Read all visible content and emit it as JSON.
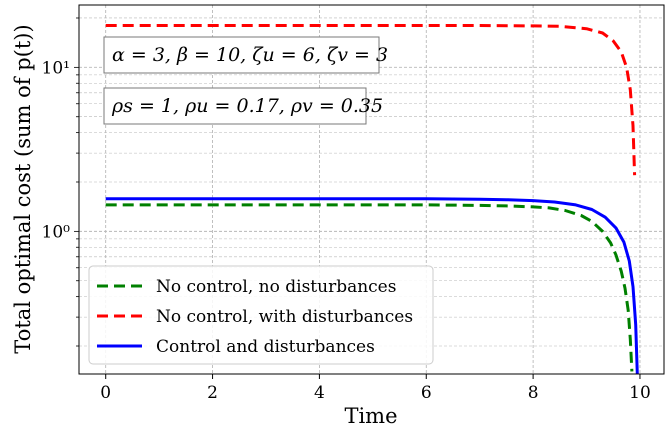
{
  "chart_data": {
    "type": "line",
    "xlabel": "Time",
    "ylabel": "Total optimal cost (sum of p(t))",
    "xlim": [
      -0.5,
      10.45
    ],
    "ylim": [
      0.135,
      24
    ],
    "yscale": "log",
    "grid": true,
    "x_ticks": [
      0,
      2,
      4,
      6,
      8,
      10
    ],
    "y_ticks": [
      {
        "value": 1,
        "label": "10⁰"
      },
      {
        "value": 10,
        "label": "10¹"
      }
    ],
    "annotations": [
      "α = 3, β = 10, ζu = 6, ζv = 3",
      "ρs = 1, ρu = 0.17, ρv = 0.35"
    ],
    "legend_position": "lower-left",
    "series": [
      {
        "name": "No control, no disturbances",
        "color": "#008000",
        "style": "dashed",
        "x": [
          0,
          1,
          2,
          3,
          4,
          5,
          6,
          7,
          7.5,
          8,
          8.3,
          8.6,
          8.9,
          9.1,
          9.3,
          9.45,
          9.55,
          9.65,
          9.72,
          9.78,
          9.82,
          9.85
        ],
        "y": [
          1.45,
          1.45,
          1.45,
          1.45,
          1.45,
          1.45,
          1.45,
          1.44,
          1.43,
          1.41,
          1.39,
          1.34,
          1.25,
          1.15,
          1.0,
          0.85,
          0.72,
          0.57,
          0.45,
          0.33,
          0.22,
          0.14
        ]
      },
      {
        "name": "No control, with disturbances",
        "color": "#ff0000",
        "style": "dashed",
        "x": [
          0,
          1,
          2,
          3,
          4,
          5,
          6,
          7,
          8,
          8.5,
          9.0,
          9.3,
          9.5,
          9.65,
          9.75,
          9.82,
          9.87,
          9.9
        ],
        "y": [
          18.0,
          18.0,
          18.0,
          18.0,
          18.0,
          18.0,
          18.0,
          18.0,
          17.9,
          17.8,
          17.2,
          16.2,
          14.5,
          12.4,
          10.0,
          7.3,
          4.4,
          2.2
        ]
      },
      {
        "name": "Control and disturbances",
        "color": "#0000ff",
        "style": "solid",
        "x": [
          0,
          1,
          2,
          3,
          4,
          5,
          6,
          7,
          7.5,
          8,
          8.4,
          8.8,
          9.1,
          9.35,
          9.55,
          9.7,
          9.8,
          9.87,
          9.92,
          9.95
        ],
        "y": [
          1.58,
          1.58,
          1.58,
          1.58,
          1.58,
          1.58,
          1.58,
          1.57,
          1.56,
          1.54,
          1.51,
          1.45,
          1.36,
          1.22,
          1.05,
          0.86,
          0.66,
          0.46,
          0.27,
          0.135
        ]
      }
    ]
  }
}
